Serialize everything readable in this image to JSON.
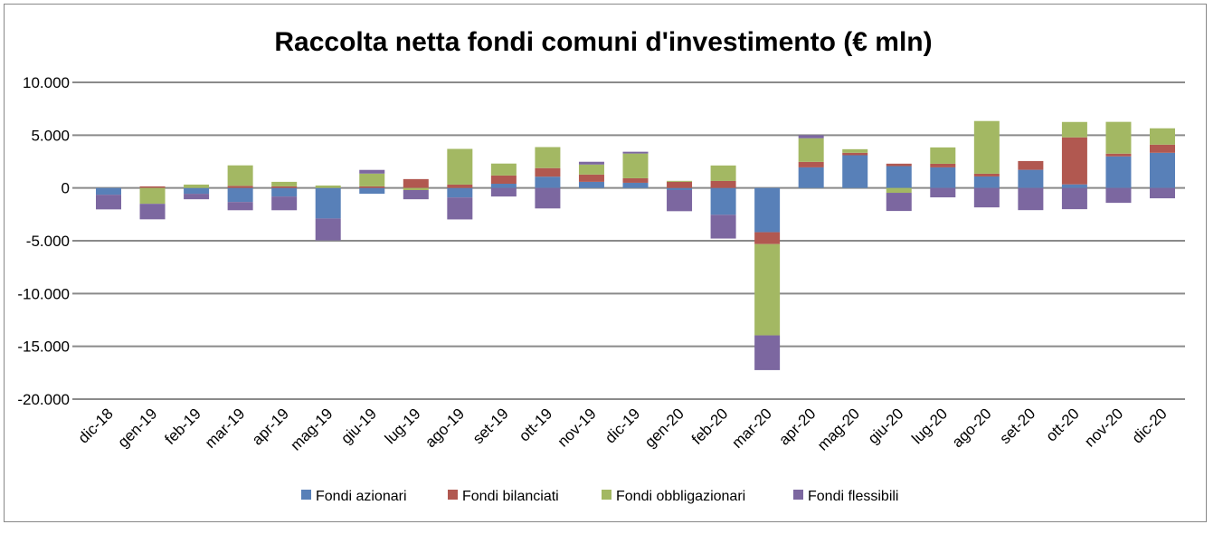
{
  "chart_data": {
    "type": "bar",
    "stacked": true,
    "title": "Raccolta netta fondi comuni d'investimento (€ mln)",
    "xlabel": "",
    "ylabel": "",
    "ylim": [
      -20000,
      10000
    ],
    "yticks": [
      10000,
      5000,
      0,
      -5000,
      -10000,
      -15000,
      -20000
    ],
    "ytick_labels": [
      "10.000",
      "5.000",
      "0",
      "-5.000",
      "-10.000",
      "-15.000",
      "-20.000"
    ],
    "grid": true,
    "legend_position": "bottom",
    "categories": [
      "dic-18",
      "gen-19",
      "feb-19",
      "mar-19",
      "apr-19",
      "mag-19",
      "giu-19",
      "lug-19",
      "ago-19",
      "set-19",
      "ott-19",
      "nov-19",
      "dic-19",
      "gen-20",
      "feb-20",
      "mar-20",
      "apr-20",
      "mag-20",
      "giu-20",
      "lug-20",
      "ago-20",
      "set-20",
      "ott-20",
      "nov-20",
      "dic-20"
    ],
    "series": [
      {
        "name": "Fondi azionari",
        "color": "#5880b8",
        "values": [
          -640,
          0,
          -550,
          -1330,
          -810,
          -2890,
          -550,
          0,
          -900,
          400,
          1070,
          580,
          490,
          -200,
          -2540,
          -4190,
          1950,
          3100,
          2070,
          1950,
          1090,
          1720,
          340,
          2990,
          3330
        ]
      },
      {
        "name": "Fondi bilanciati",
        "color": "#b15850",
        "values": [
          0,
          150,
          0,
          200,
          150,
          0,
          150,
          840,
          320,
          780,
          810,
          690,
          430,
          580,
          660,
          -1130,
          520,
          230,
          230,
          340,
          260,
          830,
          4450,
          260,
          770
        ]
      },
      {
        "name": "Fondi obbligazionari",
        "color": "#a3b863",
        "values": [
          0,
          -1500,
          320,
          1940,
          430,
          230,
          1210,
          -200,
          3380,
          1130,
          1990,
          950,
          2340,
          90,
          1470,
          -8640,
          2240,
          340,
          -460,
          1550,
          4990,
          0,
          1460,
          3010,
          1550
        ]
      },
      {
        "name": "Fondi flessibili",
        "color": "#7c67a0",
        "values": [
          -1390,
          -1470,
          -520,
          -780,
          -1300,
          -2080,
          350,
          -870,
          -2080,
          -810,
          -1940,
          260,
          170,
          -2000,
          -2250,
          -3290,
          290,
          0,
          -1720,
          -890,
          -1840,
          -2100,
          -2010,
          -1410,
          -980
        ]
      }
    ]
  }
}
